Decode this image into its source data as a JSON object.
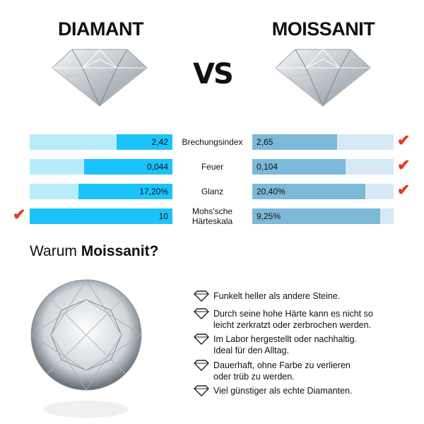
{
  "header": {
    "left_title": "DIAMANT",
    "vs": "VS",
    "right_title": "MOISSANIT"
  },
  "colors": {
    "diamond_bar": "#1cc3fa",
    "diamond_track": "#b9ecfb",
    "moissanite_bar": "#7cb8d8",
    "moissanite_track": "#d6e9f4",
    "check": "#e8381c"
  },
  "comparison": [
    {
      "label": "Brechungsindex",
      "diamond": "2,42",
      "moissanite": "2,65",
      "diamond_fill": 0.39,
      "moissanite_fill": 0.6,
      "winner": "moissanite"
    },
    {
      "label": "Feuer",
      "diamond": "0,044",
      "moissanite": "0,104",
      "diamond_fill": 0.62,
      "moissanite_fill": 0.66,
      "winner": "moissanite"
    },
    {
      "label": "Glanz",
      "diamond": "17,20%",
      "moissanite": "20,40%",
      "diamond_fill": 0.66,
      "moissanite_fill": 0.8,
      "winner": "moissanite"
    },
    {
      "label": "Mohs'sche Härteskala",
      "diamond": "10",
      "moissanite": "9,25%",
      "diamond_fill": 1.0,
      "moissanite_fill": 0.905,
      "winner": "diamond"
    }
  ],
  "why": {
    "prefix": "Warum ",
    "bold": "Moissanit?"
  },
  "features": [
    "Funkelt heller als andere Steine.",
    "Durch seine hohe Härte kann es nicht so leicht zerkratzt oder zerbrochen werden.",
    "Im Labor hergestellt oder nachhaltig. Ideal für den Alltag.",
    "Dauerhaft, ohne Farbe zu verlieren oder trüb zu werden.",
    "Viel günstiger als echte Diamanten."
  ],
  "check_icon": "checkmark-icon",
  "feature_icon": "diamond-outline-icon"
}
